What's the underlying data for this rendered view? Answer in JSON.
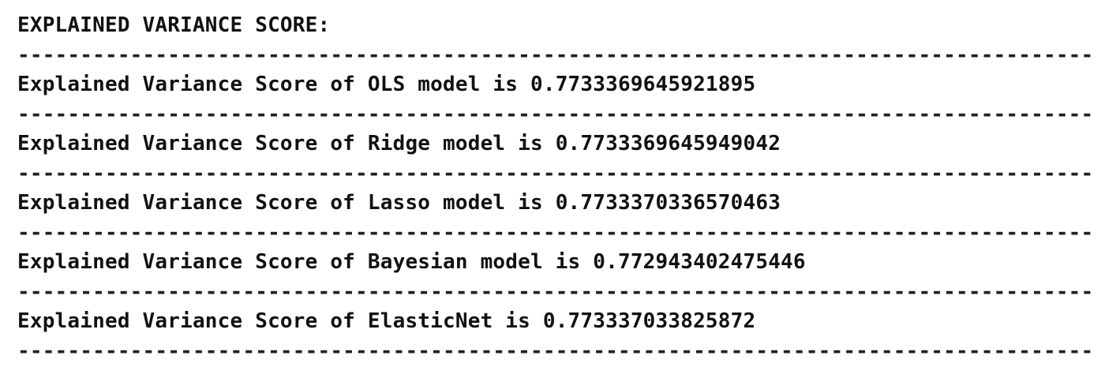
{
  "console": {
    "header": "EXPLAINED VARIANCE SCORE:",
    "separator": "----------------------------------------------------------------------------------------------",
    "results": [
      "Explained Variance Score of OLS model is 0.7733369645921895",
      "Explained Variance Score of Ridge model is 0.7733369645949042",
      "Explained Variance Score of Lasso model is 0.7733370336570463",
      "Explained Variance Score of Bayesian model is 0.772943402475446",
      "Explained Variance Score of ElasticNet is 0.773337033825872"
    ]
  }
}
